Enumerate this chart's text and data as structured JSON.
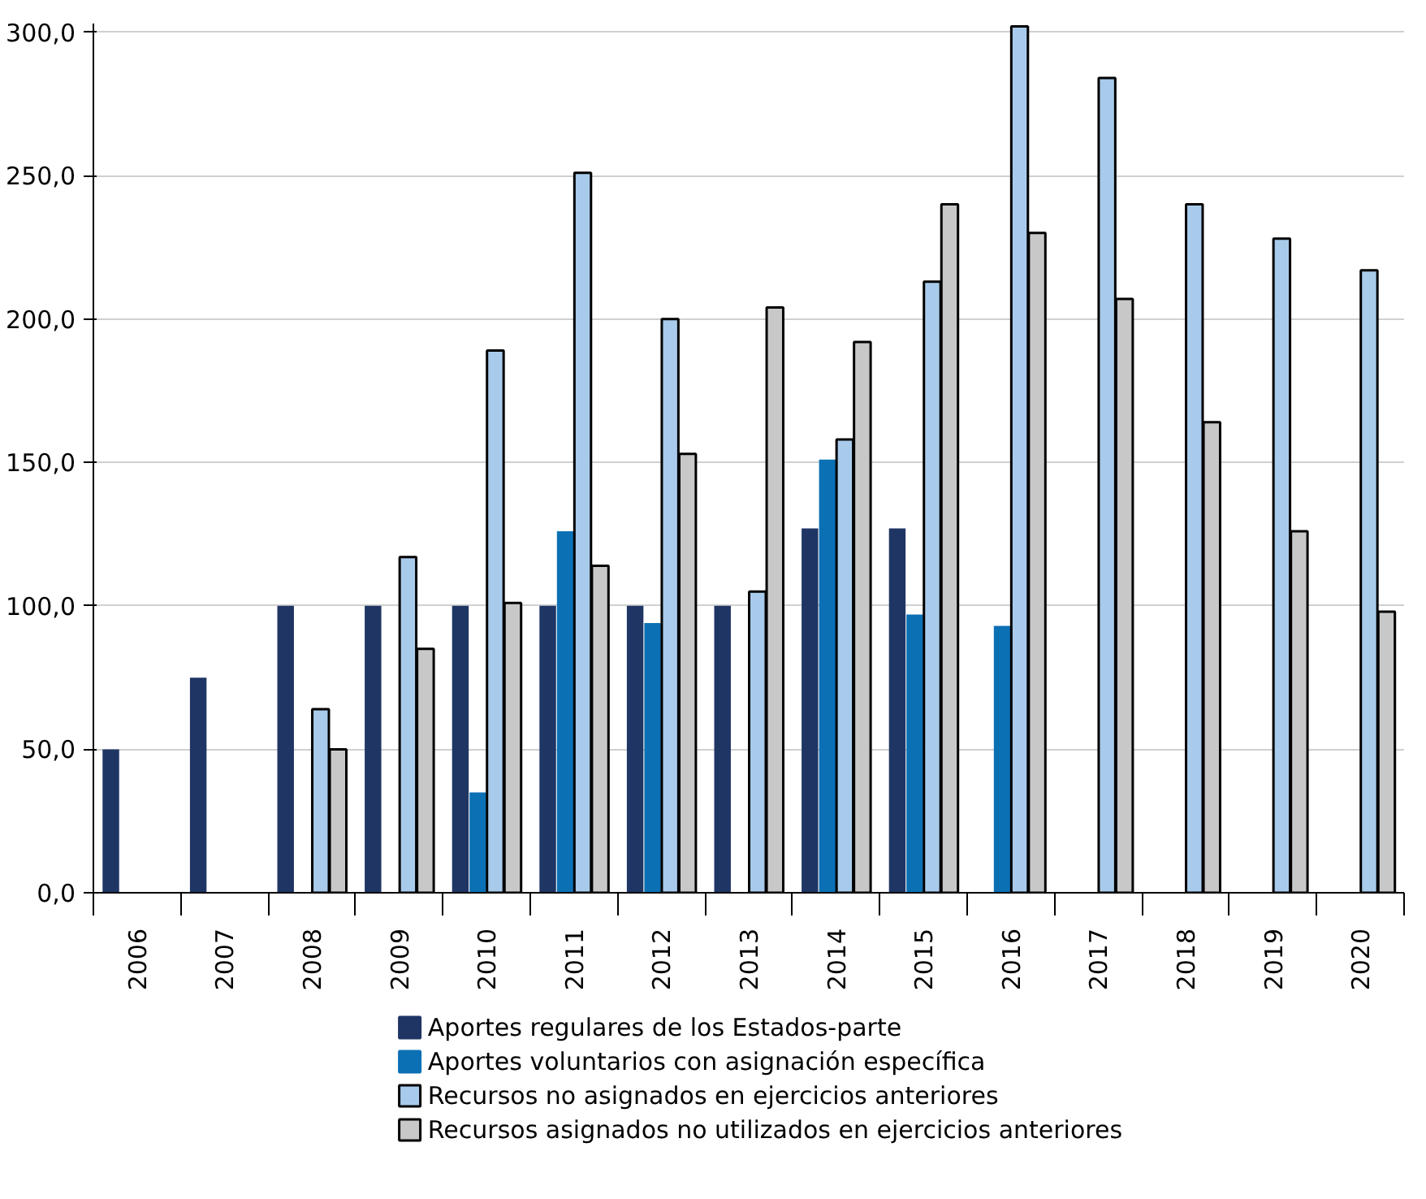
{
  "chart_data": {
    "type": "bar",
    "categories": [
      "2006",
      "2007",
      "2008",
      "2009",
      "2010",
      "2011",
      "2012",
      "2013",
      "2014",
      "2015",
      "2016",
      "2017",
      "2018",
      "2019",
      "2020"
    ],
    "series": [
      {
        "name": "Aportes regulares de los Estados-parte",
        "color": "#1f3564",
        "values": [
          50,
          75,
          100,
          100,
          100,
          100,
          100,
          100,
          127,
          127,
          null,
          null,
          null,
          null,
          null
        ]
      },
      {
        "name": "Aportes voluntarios con asignación específica",
        "color": "#0b70b4",
        "values": [
          null,
          null,
          null,
          null,
          35,
          126,
          94,
          null,
          151,
          97,
          93,
          null,
          null,
          null,
          null
        ]
      },
      {
        "name": "Recursos no asignados en ejercicios anteriores",
        "color": "#a9cbeb",
        "values": [
          null,
          null,
          64,
          117,
          189,
          251,
          200,
          105,
          158,
          213,
          302,
          284,
          240,
          228,
          217
        ]
      },
      {
        "name": "Recursos asignados no utilizados en ejercicios anteriores",
        "color": "#c8c8c8",
        "values": [
          null,
          null,
          50,
          85,
          101,
          114,
          153,
          204,
          192,
          240,
          230,
          207,
          164,
          126,
          98
        ]
      }
    ],
    "ylim": [
      0,
      303
    ],
    "yticks": [
      {
        "value": 0,
        "label": "0,0"
      },
      {
        "value": 50,
        "label": "50,0"
      },
      {
        "value": 100,
        "label": "100,0"
      },
      {
        "value": 150,
        "label": "150,0"
      },
      {
        "value": 200,
        "label": "200,0"
      },
      {
        "value": 250,
        "label": "250,0"
      },
      {
        "value": 300,
        "label": "300,0"
      }
    ],
    "grid": "y",
    "legend": "bottom"
  }
}
